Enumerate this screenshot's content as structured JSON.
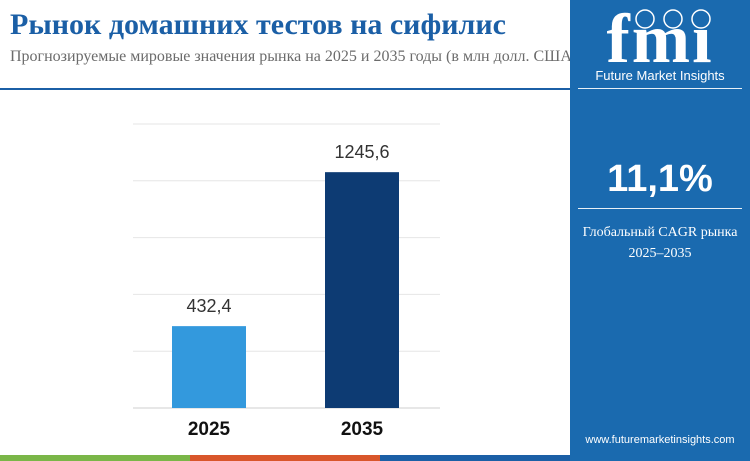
{
  "header": {
    "title": "Рынок домашних тестов на сифилис",
    "subtitle": "Прогнозируемые мировые значения рынка на 2025 и 2035 годы (в млн долл. США)"
  },
  "brand": {
    "logo_text": "fmi",
    "name": "Future Market Insights",
    "website": "www.futuremarketinsights.com"
  },
  "kpi": {
    "value": "11,1%",
    "label_line1": "Глобальный CAGR рынка",
    "label_line2": "2025–2035"
  },
  "colors": {
    "title": "#1b5fa6",
    "sidebar": "#1a6aaf",
    "bar_2025": "#3399dd",
    "bar_2035": "#0d3b73",
    "strip": [
      "#7ab648",
      "#d9562b",
      "#1b5fa6"
    ]
  },
  "chart_data": {
    "type": "bar",
    "categories": [
      "2025",
      "2035"
    ],
    "values": [
      432.4,
      1245.6
    ],
    "value_labels": [
      "432,4",
      "1245,6"
    ],
    "ylim": [
      0,
      1500
    ],
    "grid": true,
    "legend": "none"
  }
}
